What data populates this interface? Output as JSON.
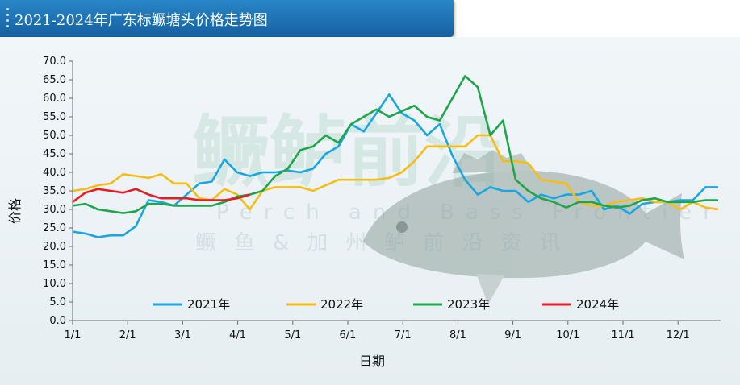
{
  "header": {
    "title": "2021-2024年广东标鳜塘头价格走势图"
  },
  "watermark": {
    "main": "鳜鲈前沿",
    "english": "Perch and Bass Frontier",
    "chinese": "鳜鱼&加州鲈前沿资讯"
  },
  "colors": {
    "s2021": "#1aa6e0",
    "s2022": "#f5be14",
    "s2023": "#20a64a",
    "s2024": "#e51d24"
  },
  "chart_data": {
    "type": "line",
    "title": "2021-2024年广东标鳜塘头价格走势图",
    "xlabel": "日期",
    "ylabel": "价格",
    "ylim": [
      0,
      70
    ],
    "yticks": [
      "70.0",
      "65.0",
      "60.0",
      "55.0",
      "50.0",
      "45.0",
      "40.0",
      "35.0",
      "30.0",
      "25.0",
      "20.0",
      "15.0",
      "10.0",
      "5.0",
      "0.0"
    ],
    "xticks": [
      "1/1",
      "2/1",
      "3/1",
      "4/1",
      "5/1",
      "6/1",
      "7/1",
      "8/1",
      "9/1",
      "10/1",
      "11/1",
      "12/1"
    ],
    "grid": false,
    "legend_position": "bottom-inside",
    "series": [
      {
        "name": "2021年",
        "color_key": "s2021",
        "x": [
          0,
          0.23,
          0.46,
          0.69,
          0.92,
          1.15,
          1.38,
          1.61,
          1.84,
          2.07,
          2.3,
          2.53,
          2.76,
          2.99,
          3.22,
          3.45,
          3.68,
          3.91,
          4.14,
          4.37,
          4.6,
          4.83,
          5.06,
          5.29,
          5.52,
          5.75,
          5.98,
          6.21,
          6.44,
          6.67,
          6.9,
          7.13,
          7.36,
          7.59,
          7.82,
          8.05,
          8.28,
          8.51,
          8.74,
          8.97,
          9.2,
          9.43,
          9.66,
          9.89,
          10.12,
          10.35,
          10.58,
          10.81,
          11.04,
          11.27,
          11.5,
          11.73
        ],
        "y": [
          24,
          23.5,
          22.5,
          23,
          23,
          25.5,
          32.5,
          32,
          31,
          34,
          37,
          37.5,
          43.5,
          40,
          39,
          40,
          40,
          40.5,
          40,
          41,
          45,
          47,
          53,
          51,
          56,
          61,
          56,
          54,
          50,
          53,
          44.5,
          38,
          34,
          36,
          35,
          35,
          32,
          34,
          33,
          34,
          34,
          35,
          30,
          31,
          28.8,
          31.5,
          32,
          32,
          32.5,
          32.5,
          36,
          36
        ]
      },
      {
        "name": "2022年",
        "color_key": "s2022",
        "x": [
          0,
          0.23,
          0.46,
          0.69,
          0.92,
          1.15,
          1.38,
          1.61,
          1.84,
          2.07,
          2.3,
          2.53,
          2.76,
          2.99,
          3.22,
          3.45,
          3.68,
          3.91,
          4.14,
          4.37,
          4.6,
          4.83,
          5.06,
          5.29,
          5.52,
          5.75,
          5.98,
          6.21,
          6.44,
          6.67,
          6.9,
          7.13,
          7.36,
          7.59,
          7.82,
          8.05,
          8.28,
          8.51,
          8.74,
          8.97,
          9.2,
          9.43,
          9.66,
          9.89,
          10.12,
          10.35,
          10.58,
          10.81,
          11.04,
          11.27,
          11.5,
          11.73
        ],
        "y": [
          35,
          35.5,
          36.5,
          37,
          39.5,
          39,
          38.5,
          39.5,
          37,
          37,
          33,
          32.5,
          35.5,
          34,
          30,
          35,
          36,
          36,
          36,
          35,
          36.5,
          38,
          38,
          38,
          38,
          38.5,
          40,
          43,
          47,
          47,
          47,
          47,
          50,
          50,
          43,
          43,
          42.5,
          38,
          37.5,
          37,
          32,
          31,
          31,
          32,
          32.5,
          33,
          32,
          32,
          30,
          32,
          30.5,
          30
        ]
      },
      {
        "name": "2023年",
        "color_key": "s2023",
        "x": [
          0,
          0.23,
          0.46,
          0.69,
          0.92,
          1.15,
          1.38,
          1.61,
          1.84,
          2.07,
          2.3,
          2.53,
          2.76,
          2.99,
          3.22,
          3.45,
          3.68,
          3.91,
          4.14,
          4.37,
          4.6,
          4.83,
          5.06,
          5.29,
          5.52,
          5.75,
          5.98,
          6.21,
          6.44,
          6.67,
          6.9,
          7.13,
          7.36,
          7.59,
          7.82,
          8.05,
          8.28,
          8.51,
          8.74,
          8.97,
          9.2,
          9.43,
          9.66,
          9.89,
          10.12,
          10.35,
          10.58,
          10.81,
          11.04,
          11.27,
          11.5,
          11.73
        ],
        "y": [
          31,
          31.5,
          30,
          29.5,
          29,
          29.5,
          31.5,
          31.5,
          31,
          31,
          31,
          31,
          32,
          33.5,
          34,
          35,
          39,
          41,
          46,
          47,
          50,
          48,
          53,
          55,
          57,
          55,
          56.5,
          58,
          55,
          54,
          60,
          66,
          63,
          50,
          54,
          38,
          35,
          33,
          32,
          30.5,
          32,
          32,
          31,
          30.5,
          31,
          32.5,
          33,
          32,
          32,
          32,
          32.5,
          32.5
        ]
      },
      {
        "name": "2024年",
        "color_key": "s2024",
        "x": [
          0,
          0.23,
          0.46,
          0.69,
          0.92,
          1.15,
          1.38,
          1.61,
          1.84,
          2.07,
          2.3,
          2.53,
          2.76,
          2.99,
          3.22
        ],
        "y": [
          32,
          34.5,
          35.5,
          35,
          34.5,
          35.5,
          34,
          33,
          33,
          33,
          32.5,
          32.5,
          32.5,
          33,
          34
        ]
      }
    ]
  }
}
